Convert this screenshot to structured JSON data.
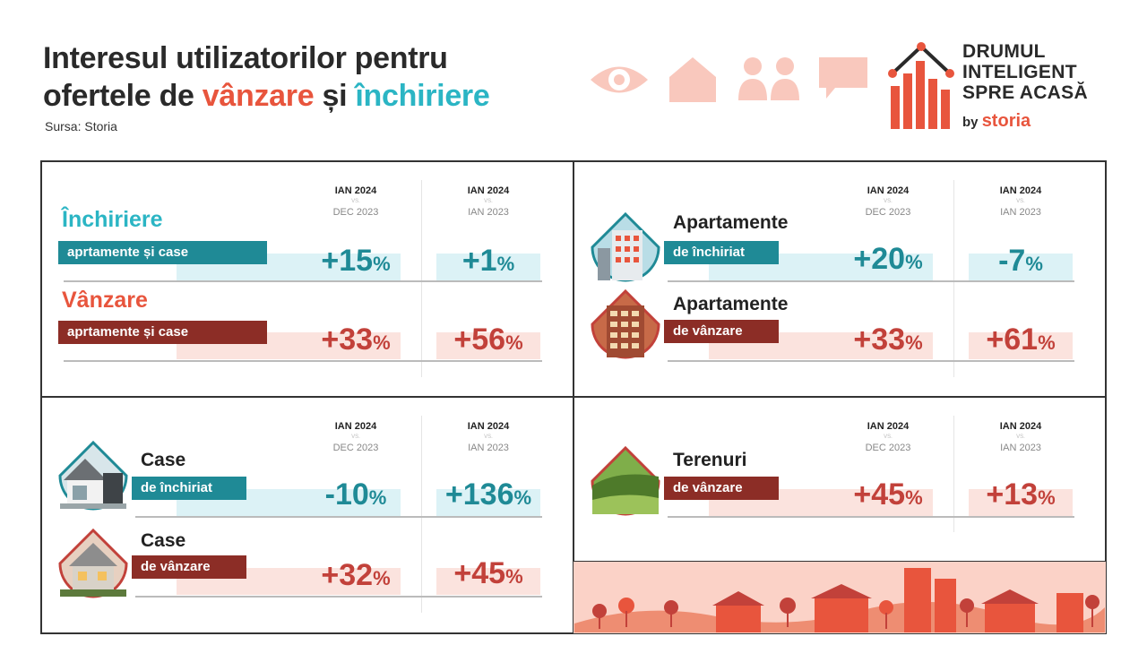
{
  "header": {
    "title_line1": "Interesul utilizatorilor pentru",
    "title_line2_prefix": "ofertele de ",
    "title_sale": "vânzare",
    "title_and": " și ",
    "title_rent": "închiriere",
    "source": "Sursa: Storia"
  },
  "brand": {
    "line1": "DRUMUL",
    "line2": "INTELIGENT",
    "line3": "SPRE ACASĂ",
    "by": "by",
    "name": "storia"
  },
  "columns": {
    "c1_top": "IAN 2024",
    "c1_vs": "VS.",
    "c1_bottom": "DEC 2023",
    "c2_top": "IAN 2024",
    "c2_vs": "VS.",
    "c2_bottom": "IAN 2023"
  },
  "panel1": {
    "rent_title": "Închiriere",
    "rent_tag": "aprtamente și case",
    "rent_v1": "+15",
    "rent_v2": "+1",
    "sale_title": "Vânzare",
    "sale_tag": "aprtamente și case",
    "sale_v1": "+33",
    "sale_v2": "+56"
  },
  "panel2": {
    "rent_title": "Apartamente",
    "rent_tag": "de închiriat",
    "rent_v1": "+20",
    "rent_v2": "-7",
    "sale_title": "Apartamente",
    "sale_tag": "de vânzare",
    "sale_v1": "+33",
    "sale_v2": "+61"
  },
  "panel3": {
    "rent_title": "Case",
    "rent_tag": "de închiriat",
    "rent_v1": "-10",
    "rent_v2": "+136",
    "sale_title": "Case",
    "sale_tag": "de vânzare",
    "sale_v1": "+32",
    "sale_v2": "+45"
  },
  "panel4": {
    "title": "Terenuri",
    "tag": "de vânzare",
    "v1": "+45",
    "v2": "+13"
  },
  "pct": "%",
  "colors": {
    "teal": "#1f8a96",
    "red": "#c2413a",
    "brand_orange": "#e8553d",
    "light_teal": "#dcf2f6",
    "light_red": "#fbe3de"
  }
}
